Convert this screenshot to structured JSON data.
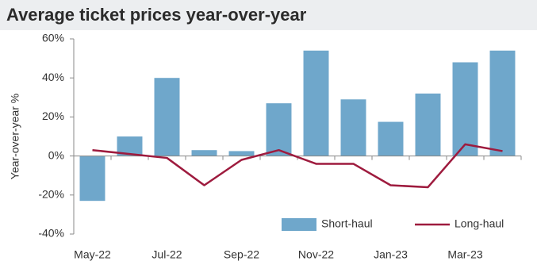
{
  "chart_data": {
    "type": "bar",
    "title": "Average ticket prices year-over-year",
    "y_label": "Year-over-year  %",
    "categories": [
      "May-22",
      null,
      "Jul-22",
      null,
      "Sep-22",
      null,
      "Nov-22",
      null,
      "Jan-23",
      null,
      "Mar-23",
      null
    ],
    "series": [
      {
        "name": "Short-haul",
        "type": "bar",
        "color": "#6fa7cb",
        "values": [
          -23,
          10,
          40,
          3,
          2.5,
          27,
          54,
          29,
          17.5,
          32,
          48,
          54
        ]
      },
      {
        "name": "Long-haul",
        "type": "line",
        "color": "#9e1b3e",
        "values": [
          3,
          1,
          -1,
          -15,
          -2,
          3,
          -4,
          -4,
          -15,
          -16,
          6,
          2.5
        ]
      }
    ],
    "ylim": [
      -40,
      60
    ],
    "yticks": [
      {
        "value": -40,
        "label": "-40%"
      },
      {
        "value": -20,
        "label": "-20%"
      },
      {
        "value": 0,
        "label": "0%"
      },
      {
        "value": 20,
        "label": "20%"
      },
      {
        "value": 40,
        "label": "40%"
      },
      {
        "value": 60,
        "label": "60%"
      }
    ],
    "legend": "lower right"
  }
}
